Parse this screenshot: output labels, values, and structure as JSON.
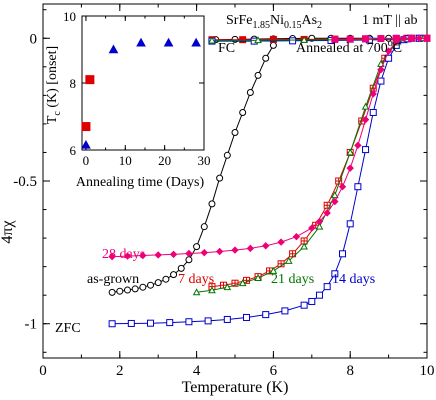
{
  "chart_data": [
    {
      "type": "line",
      "title": "",
      "xlabel": "Temperature (K)",
      "ylabel": "4πχ",
      "xlim": [
        0,
        10
      ],
      "ylim": [
        -1.12,
        0.12
      ],
      "xticks": [
        "0",
        "2",
        "4",
        "6",
        "8",
        "10"
      ],
      "yticks": [
        "0",
        "-0.5",
        "-1"
      ],
      "ytick_values": [
        0,
        -0.5,
        -1
      ],
      "xtick_values": [
        0,
        2,
        4,
        6,
        8,
        10
      ],
      "grid": false,
      "annotations": {
        "material": "SrFe1.85Ni0.15As2",
        "material_parts": {
          "a": "SrFe",
          "b": "1.85",
          "c": "Ni",
          "d": "0.15",
          "e": "As",
          "f": "2"
        },
        "field": "1 mT || ab",
        "anneal_main": "Annealed at 700",
        "anneal_unit": "C",
        "anneal_sup": "o",
        "fc": "FC",
        "zfc": "ZFC",
        "label_28": "28 days",
        "label_ag": "as-grown",
        "label_7": "7 days",
        "label_21": "21 days",
        "label_14": "14 days"
      },
      "series": [
        {
          "name": "as-grown",
          "color": "#000000",
          "marker": "circle-open",
          "x": [
            1.8,
            2.0,
            2.2,
            2.4,
            2.6,
            2.8,
            3.0,
            3.2,
            3.4,
            3.6,
            3.8,
            4.0,
            4.2,
            4.4,
            4.6,
            4.8,
            5.0,
            5.2,
            5.4,
            5.6,
            5.8,
            6.0
          ],
          "y": [
            -0.89,
            -0.886,
            -0.882,
            -0.878,
            -0.872,
            -0.865,
            -0.856,
            -0.844,
            -0.828,
            -0.806,
            -0.776,
            -0.73,
            -0.66,
            -0.58,
            -0.49,
            -0.41,
            -0.33,
            -0.26,
            -0.19,
            -0.13,
            -0.07,
            -0.025
          ]
        },
        {
          "name": "as-grown FC",
          "color": "#000000",
          "marker": "circle-open",
          "x": [
            4.5,
            5.0,
            5.5,
            6.0,
            6.5,
            7.0,
            7.5,
            8.0,
            8.5,
            9.0,
            9.5,
            10.0
          ],
          "y": [
            -0.005,
            -0.004,
            -0.003,
            -0.002,
            -0.001,
            0.0,
            0.0,
            0.0,
            0.0,
            0.0,
            0.0,
            0.0
          ]
        },
        {
          "name": "7 days",
          "color": "#dd0000",
          "marker": "square-cross",
          "x": [
            4.4,
            4.7,
            5.0,
            5.3,
            5.6,
            5.9,
            6.2,
            6.5,
            6.8,
            7.1,
            7.4,
            7.7,
            8.0,
            8.3,
            8.6,
            8.9,
            9.2,
            9.5,
            9.8
          ],
          "y": [
            -0.87,
            -0.865,
            -0.858,
            -0.848,
            -0.835,
            -0.815,
            -0.79,
            -0.755,
            -0.71,
            -0.655,
            -0.585,
            -0.5,
            -0.4,
            -0.29,
            -0.175,
            -0.07,
            -0.01,
            0.0,
            0.0
          ]
        },
        {
          "name": "7 days FC",
          "color": "#dd0000",
          "marker": "square-filled",
          "x": [
            4.4,
            5.2,
            6.0,
            6.8,
            7.6,
            8.4,
            9.2,
            10.0
          ],
          "y": [
            -0.005,
            -0.005,
            -0.004,
            -0.004,
            -0.003,
            -0.002,
            -0.001,
            0.0
          ]
        },
        {
          "name": "14 days",
          "color": "#0000cc",
          "marker": "square-open",
          "x": [
            1.8,
            2.3,
            2.8,
            3.3,
            3.8,
            4.3,
            4.8,
            5.3,
            5.8,
            6.3,
            6.8,
            7.0,
            7.2,
            7.4,
            7.6,
            7.8,
            8.0,
            8.2,
            8.4,
            8.6,
            8.8,
            9.0,
            9.2,
            9.4,
            9.6,
            9.8
          ],
          "y": [
            -1.0,
            -0.999,
            -0.998,
            -0.996,
            -0.993,
            -0.99,
            -0.985,
            -0.978,
            -0.968,
            -0.955,
            -0.935,
            -0.922,
            -0.9,
            -0.87,
            -0.825,
            -0.755,
            -0.65,
            -0.52,
            -0.39,
            -0.26,
            -0.15,
            -0.07,
            -0.025,
            -0.005,
            0.0,
            0.0
          ]
        },
        {
          "name": "14 days FC",
          "color": "#0000cc",
          "marker": "square-open",
          "x": [
            4.4,
            5.5,
            6.5,
            7.5,
            8.5,
            9.5
          ],
          "y": [
            -0.01,
            -0.01,
            -0.009,
            -0.008,
            -0.006,
            -0.002
          ]
        },
        {
          "name": "21 days",
          "color": "#007700",
          "marker": "triangle-open",
          "x": [
            4.0,
            4.4,
            4.8,
            5.2,
            5.6,
            6.0,
            6.4,
            6.8,
            7.2,
            7.6,
            8.0,
            8.4,
            8.8,
            9.2,
            9.6,
            9.9
          ],
          "y": [
            -0.89,
            -0.883,
            -0.872,
            -0.858,
            -0.84,
            -0.815,
            -0.78,
            -0.73,
            -0.66,
            -0.55,
            -0.4,
            -0.24,
            -0.09,
            -0.015,
            0.0,
            0.0
          ]
        },
        {
          "name": "21 days FC",
          "color": "#007700",
          "marker": "triangle-open",
          "x": [
            4.4,
            5.6,
            6.8,
            8.0,
            9.2,
            10.0
          ],
          "y": [
            -0.008,
            -0.007,
            -0.006,
            -0.005,
            -0.002,
            0.0
          ]
        },
        {
          "name": "28 days",
          "color": "#ee0077",
          "marker": "diamond-filled",
          "x": [
            1.8,
            2.2,
            2.6,
            3.0,
            3.4,
            3.8,
            4.2,
            4.6,
            5.0,
            5.4,
            5.8,
            6.2,
            6.6,
            7.0,
            7.2,
            7.4,
            7.6,
            7.8,
            8.0,
            8.2,
            8.4,
            8.6,
            8.8,
            9.0,
            9.2,
            9.4,
            9.6,
            9.8
          ],
          "y": [
            -0.765,
            -0.763,
            -0.761,
            -0.759,
            -0.757,
            -0.754,
            -0.751,
            -0.747,
            -0.742,
            -0.736,
            -0.727,
            -0.714,
            -0.695,
            -0.665,
            -0.642,
            -0.612,
            -0.572,
            -0.52,
            -0.455,
            -0.375,
            -0.285,
            -0.195,
            -0.11,
            -0.045,
            -0.012,
            0.0,
            0.0,
            0.0
          ]
        },
        {
          "name": "28 days FC",
          "color": "#ee0077",
          "marker": "square-filled",
          "x": [
            7.6,
            8.0,
            8.4,
            8.8,
            9.2,
            9.6,
            10.0
          ],
          "y": [
            -0.004,
            -0.003,
            -0.002,
            -0.001,
            0.0,
            0.0,
            0.0
          ]
        }
      ]
    },
    {
      "type": "scatter",
      "title": "",
      "xlabel": "Annealing time (Days)",
      "ylabel": "T_c (K) [onset]",
      "ylabel_parts": {
        "pre": "T",
        "sub": "c",
        "post": " (K) [onset]"
      },
      "xlim": [
        -1,
        30
      ],
      "ylim": [
        6,
        10
      ],
      "xticks": [
        "0",
        "10",
        "20",
        "30"
      ],
      "xtick_values": [
        0,
        10,
        20,
        30
      ],
      "yticks": [
        "6",
        "8",
        "10"
      ],
      "ytick_values": [
        6,
        8,
        10
      ],
      "series": [
        {
          "name": "blue",
          "color": "#0000cc",
          "marker": "triangle-filled",
          "x": [
            0,
            7,
            14,
            21,
            28
          ],
          "y": [
            6.15,
            9.0,
            9.2,
            9.2,
            9.2
          ]
        },
        {
          "name": "red",
          "color": "#dd0000",
          "marker": "square-filled",
          "x": [
            0,
            1
          ],
          "y": [
            6.7,
            8.1
          ]
        }
      ]
    }
  ]
}
